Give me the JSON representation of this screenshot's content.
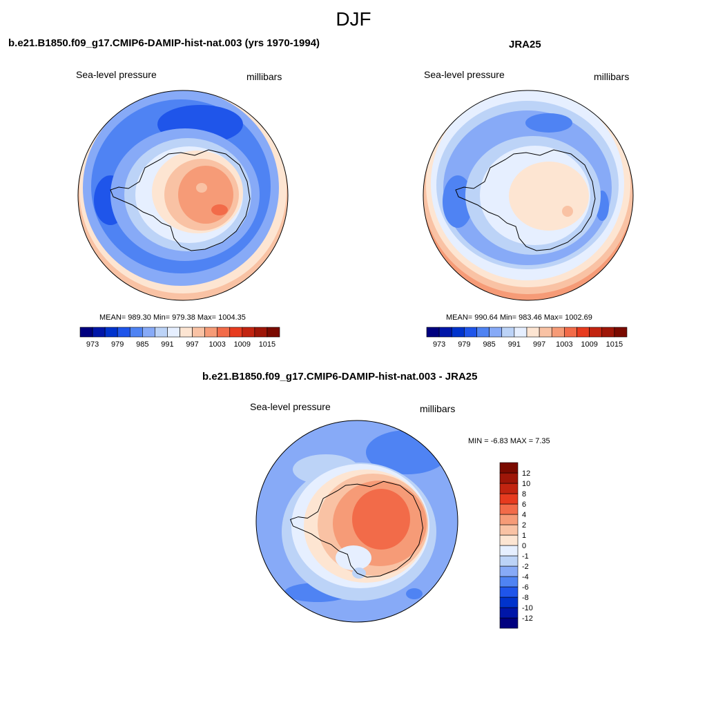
{
  "figure": {
    "title": "DJF"
  },
  "panels": [
    {
      "title": "b.e21.B1850.f09_g17.CMIP6-DAMIP-hist-nat.003 (yrs 1970-1994)",
      "variable": "Sea-level pressure",
      "units": "millibars",
      "stats": "MEAN= 989.30  Min= 979.38  Max= 1004.35"
    },
    {
      "title": "JRA25",
      "variable": "Sea-level pressure",
      "units": "millibars",
      "stats": "MEAN= 990.64  Min= 983.46  Max= 1002.69"
    },
    {
      "title": "b.e21.B1850.f09_g17.CMIP6-DAMIP-hist-nat.003 - JRA25",
      "variable": "Sea-level pressure",
      "units": "millibars",
      "stats": "MIN =  -6.83 MAX =   7.35"
    }
  ],
  "colorbar_abs": {
    "colors": [
      "#00007f",
      "#0016a8",
      "#0033cc",
      "#1f55ea",
      "#4f83f3",
      "#87aaf7",
      "#bcd3f7",
      "#e6efff",
      "#fde5d2",
      "#f9c2a4",
      "#f69b77",
      "#f26b49",
      "#e73b1f",
      "#c22410",
      "#9e1608",
      "#7a0a00"
    ],
    "labels": [
      "973",
      "979",
      "985",
      "991",
      "997",
      "1003",
      "1009",
      "1015"
    ]
  },
  "colorbar_diff": {
    "colors": [
      "#00007f",
      "#0016a8",
      "#0033cc",
      "#1f55ea",
      "#4f83f3",
      "#87aaf7",
      "#bcd3f7",
      "#e6efff",
      "#fde5d2",
      "#f9c2a4",
      "#f69b77",
      "#f26b49",
      "#e73b1f",
      "#c22410",
      "#9e1608",
      "#7a0a00"
    ],
    "labels": [
      "-12",
      "-10",
      "-8",
      "-6",
      "-4",
      "-2",
      "-1",
      "0",
      "1",
      "2",
      "4",
      "6",
      "8",
      "10",
      "12"
    ]
  }
}
